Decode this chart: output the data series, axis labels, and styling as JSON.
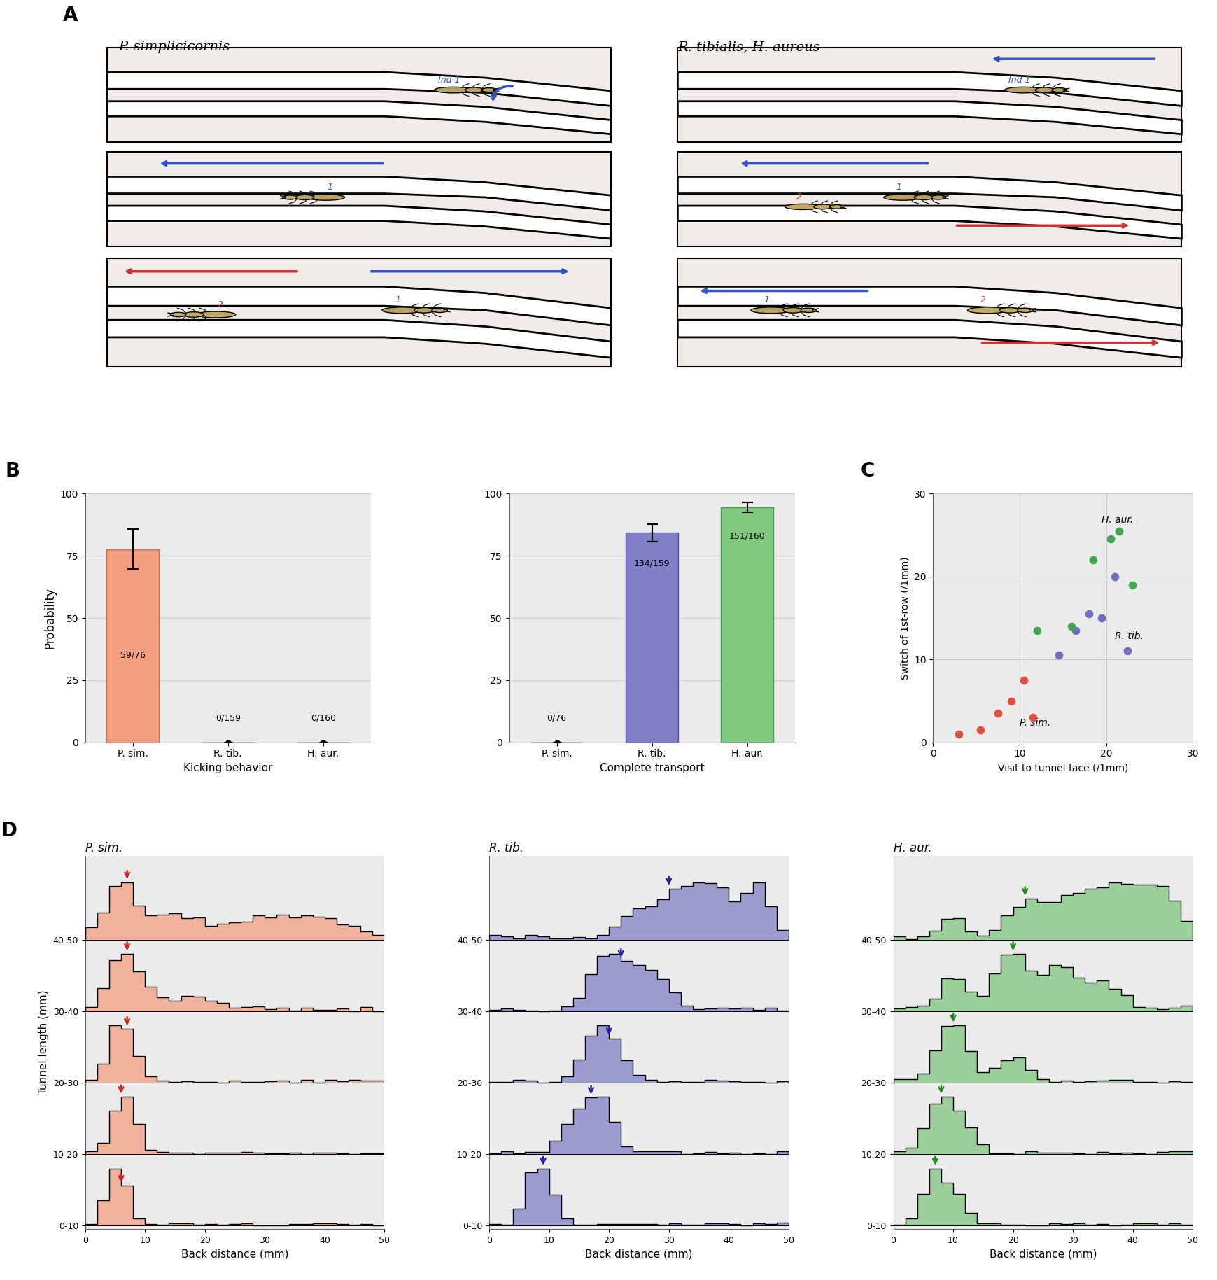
{
  "panel_A_title_left": "P. simplicicornis",
  "panel_A_title_right": "R. tibialis, H. aureus",
  "panel_B_left": {
    "title": "Kicking behavior",
    "ylabel": "Probability",
    "categories": [
      "P. sim.",
      "R. tib.",
      "H. aur."
    ],
    "values": [
      77.6,
      0.0,
      0.0
    ],
    "labels": [
      "59/76",
      "0/159",
      "0/160"
    ],
    "err_low": [
      8.0,
      0.0,
      0.0
    ],
    "err_high": [
      8.0,
      0.0,
      0.0
    ],
    "bar_colors": [
      "#F4A080",
      "#222222",
      "#222222"
    ],
    "ylim": [
      0,
      100
    ],
    "yticks": [
      0,
      25,
      50,
      75,
      100
    ]
  },
  "panel_B_right": {
    "title": "Complete transport",
    "categories": [
      "P. sim.",
      "R. tib.",
      "H. aur."
    ],
    "values": [
      0.0,
      84.3,
      94.4
    ],
    "labels": [
      "0/76",
      "134/159",
      "151/160"
    ],
    "err_low": [
      0.0,
      3.5,
      2.0
    ],
    "err_high": [
      0.0,
      3.5,
      2.0
    ],
    "bar_colors": [
      "#222222",
      "#8080C8",
      "#80C880"
    ],
    "ylim": [
      0,
      100
    ],
    "yticks": [
      0,
      25,
      50,
      75,
      100
    ]
  },
  "panel_C": {
    "xlabel": "Visit to tunnel face (/1mm)",
    "ylabel": "Switch of 1st-row (/1mm)",
    "xlim": [
      0,
      30
    ],
    "ylim": [
      0,
      30
    ],
    "xticks": [
      0,
      10,
      20,
      30
    ],
    "yticks": [
      0,
      10,
      20,
      30
    ],
    "psim_x": [
      3.0,
      5.5,
      7.5,
      9.0,
      10.5,
      11.5
    ],
    "psim_y": [
      1.0,
      1.5,
      3.5,
      5.0,
      7.5,
      3.0
    ],
    "rtib_x": [
      14.5,
      16.5,
      18.0,
      19.5,
      21.0,
      22.5
    ],
    "rtib_y": [
      10.5,
      13.5,
      15.5,
      15.0,
      20.0,
      11.0
    ],
    "haur_x": [
      12.0,
      16.0,
      18.5,
      20.5,
      21.5,
      23.0
    ],
    "haur_y": [
      13.5,
      14.0,
      22.0,
      24.5,
      25.5,
      19.0
    ],
    "label_psim": "P. sim.",
    "label_rtib": "R. tib.",
    "label_haur": "H. aur.",
    "color_psim": "#E05040",
    "color_rtib": "#7070C0",
    "color_haur": "#40A850"
  },
  "panel_D": {
    "psim_color": "#F4A080",
    "rtib_color": "#8080C8",
    "haur_color": "#80C880",
    "arrow_color_psim": "#CC2222",
    "arrow_color_rtib": "#2222AA",
    "arrow_color_haur": "#228822",
    "tunnel_ranges": [
      "0-10",
      "10-20",
      "20-30",
      "30-40",
      "40-50"
    ],
    "xlabel": "Back distance (mm)",
    "ylabel": "Tunnel length (mm)",
    "title_psim": "P. sim.",
    "title_rtib": "R. tib.",
    "title_haur": "H. aur.",
    "bg_color": "#F0F0F0",
    "panel_bg": "#F8F5F0"
  },
  "background_color": "#FFFFFF",
  "grid_color": "#CCCCCC",
  "panel_bg_color": "#F2ECE8"
}
